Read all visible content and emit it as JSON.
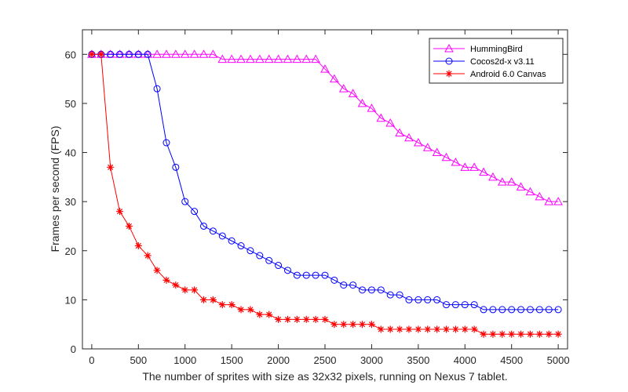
{
  "chart_data": {
    "type": "line",
    "title": "",
    "xlabel": "The number of sprites with size as 32x32 pixels, running on Nexus 7 tablet.",
    "ylabel": "Frames per second (FPS)",
    "xlim": [
      -100,
      5100
    ],
    "ylim": [
      0,
      65
    ],
    "xticks": [
      0,
      500,
      1000,
      1500,
      2000,
      2500,
      3000,
      3500,
      4000,
      4500,
      5000
    ],
    "yticks": [
      0,
      10,
      20,
      30,
      40,
      50,
      60
    ],
    "grid": false,
    "legend_position": "top-right",
    "x": [
      0,
      100,
      200,
      300,
      400,
      500,
      600,
      700,
      800,
      900,
      1000,
      1100,
      1200,
      1300,
      1400,
      1500,
      1600,
      1700,
      1800,
      1900,
      2000,
      2100,
      2200,
      2300,
      2400,
      2500,
      2600,
      2700,
      2800,
      2900,
      3000,
      3100,
      3200,
      3300,
      3400,
      3500,
      3600,
      3700,
      3800,
      3900,
      4000,
      4100,
      4200,
      4300,
      4400,
      4500,
      4600,
      4700,
      4800,
      4900,
      5000
    ],
    "series": [
      {
        "name": "HummingBird",
        "color": "#ff00ff",
        "marker": "triangle",
        "values": [
          60,
          60,
          60,
          60,
          60,
          60,
          60,
          60,
          60,
          60,
          60,
          60,
          60,
          60,
          59,
          59,
          59,
          59,
          59,
          59,
          59,
          59,
          59,
          59,
          59,
          57,
          55,
          53,
          52,
          50,
          49,
          47,
          46,
          44,
          43,
          42,
          41,
          40,
          39,
          38,
          37,
          37,
          36,
          35,
          34,
          34,
          33,
          32,
          31,
          30,
          30
        ]
      },
      {
        "name": "Cocos2d-x v3.11",
        "color": "#0000ff",
        "marker": "circle",
        "values": [
          60,
          60,
          60,
          60,
          60,
          60,
          60,
          53,
          42,
          37,
          30,
          28,
          25,
          24,
          23,
          22,
          21,
          20,
          19,
          18,
          17,
          16,
          15,
          15,
          15,
          15,
          14,
          13,
          13,
          12,
          12,
          12,
          11,
          11,
          10,
          10,
          10,
          10,
          9,
          9,
          9,
          9,
          8,
          8,
          8,
          8,
          8,
          8,
          8,
          8,
          8
        ]
      },
      {
        "name": "Android 6.0 Canvas",
        "color": "#ff0000",
        "marker": "star",
        "values": [
          60,
          60,
          37,
          28,
          25,
          21,
          19,
          16,
          14,
          13,
          12,
          12,
          10,
          10,
          9,
          9,
          8,
          8,
          7,
          7,
          6,
          6,
          6,
          6,
          6,
          6,
          5,
          5,
          5,
          5,
          5,
          4,
          4,
          4,
          4,
          4,
          4,
          4,
          4,
          4,
          4,
          4,
          3,
          3,
          3,
          3,
          3,
          3,
          3,
          3,
          3
        ]
      }
    ]
  }
}
